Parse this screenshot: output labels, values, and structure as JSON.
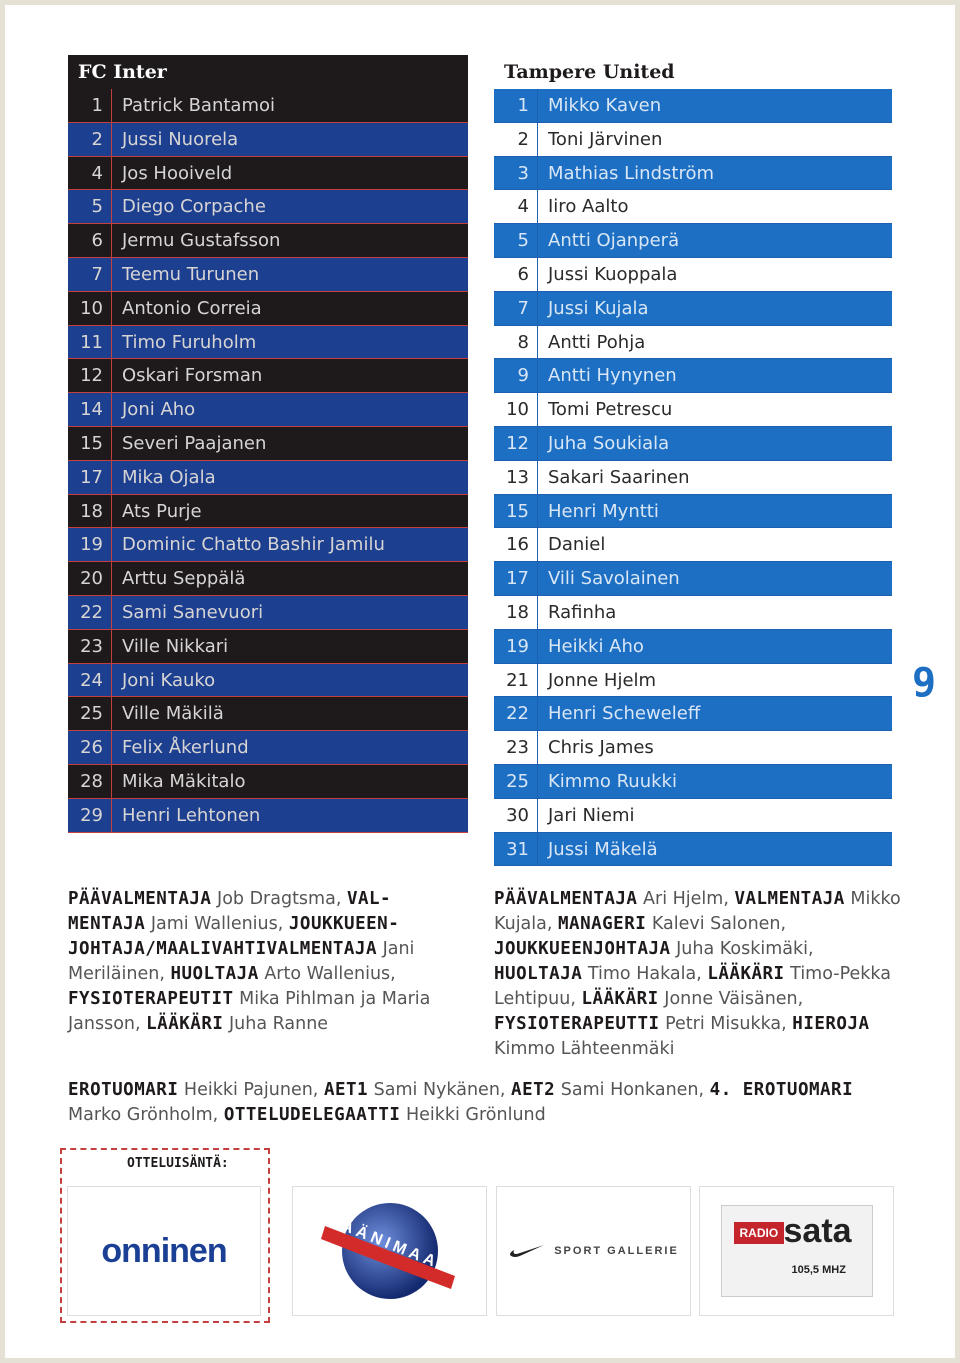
{
  "inter": {
    "title": "FC Inter",
    "players": [
      {
        "num": "1",
        "name": "Patrick Bantamoi",
        "style": "dark"
      },
      {
        "num": "2",
        "name": "Jussi Nuorela",
        "style": "blue"
      },
      {
        "num": "4",
        "name": "Jos Hooiveld",
        "style": "dark"
      },
      {
        "num": "5",
        "name": "Diego Corpache",
        "style": "blue"
      },
      {
        "num": "6",
        "name": "Jermu Gustafsson",
        "style": "dark"
      },
      {
        "num": "7",
        "name": "Teemu Turunen",
        "style": "blue"
      },
      {
        "num": "10",
        "name": "Antonio Correia",
        "style": "dark"
      },
      {
        "num": "11",
        "name": "Timo Furuholm",
        "style": "blue"
      },
      {
        "num": "12",
        "name": "Oskari Forsman",
        "style": "dark"
      },
      {
        "num": "14",
        "name": "Joni Aho",
        "style": "blue"
      },
      {
        "num": "15",
        "name": "Severi Paajanen",
        "style": "dark"
      },
      {
        "num": "17",
        "name": "Mika Ojala",
        "style": "blue"
      },
      {
        "num": "18",
        "name": "Ats Purje",
        "style": "dark"
      },
      {
        "num": "19",
        "name": "Dominic Chatto Bashir Jamilu",
        "style": "blue"
      },
      {
        "num": "20",
        "name": "Arttu Seppälä",
        "style": "dark"
      },
      {
        "num": "22",
        "name": "Sami Sanevuori",
        "style": "blue"
      },
      {
        "num": "23",
        "name": "Ville Nikkari",
        "style": "dark"
      },
      {
        "num": "24",
        "name": "Joni Kauko",
        "style": "blue"
      },
      {
        "num": "25",
        "name": "Ville Mäkilä",
        "style": "dark"
      },
      {
        "num": "26",
        "name": "Felix Åkerlund",
        "style": "blue"
      },
      {
        "num": "28",
        "name": "Mika Mäkitalo",
        "style": "dark"
      },
      {
        "num": "29",
        "name": "Henri Lehtonen",
        "style": "blue"
      }
    ],
    "staff": [
      {
        "role": "PÄÄVALMENTAJA",
        "name": " Job Dragtsma, "
      },
      {
        "role": "VAL-MENTAJA",
        "name": " Jami Wallenius, "
      },
      {
        "role": "JOUKKUEEN-JOHTAJA/MAALIVAHTIVALMENTAJA",
        "name": " Jani Meriläinen, "
      },
      {
        "role": "HUOLTAJA",
        "name": " Arto Wallenius, "
      },
      {
        "role": "FYSIOTERAPEUTIT",
        "name": " Mika Pihlman ja Maria Jansson, "
      },
      {
        "role": "LÄÄKÄRI",
        "name": " Juha Ranne"
      }
    ]
  },
  "tampere": {
    "title": "Tampere United",
    "players": [
      {
        "num": "1",
        "name": "Mikko Kaven",
        "style": "blue"
      },
      {
        "num": "2",
        "name": "Toni Järvinen",
        "style": "white"
      },
      {
        "num": "3",
        "name": "Mathias Lindström",
        "style": "blue"
      },
      {
        "num": "4",
        "name": "Iiro Aalto",
        "style": "white"
      },
      {
        "num": "5",
        "name": "Antti Ojanperä",
        "style": "blue"
      },
      {
        "num": "6",
        "name": "Jussi Kuoppala",
        "style": "white"
      },
      {
        "num": "7",
        "name": "Jussi Kujala",
        "style": "blue"
      },
      {
        "num": "8",
        "name": "Antti Pohja",
        "style": "white"
      },
      {
        "num": "9",
        "name": "Antti Hynynen",
        "style": "blue"
      },
      {
        "num": "10",
        "name": "Tomi Petrescu",
        "style": "white"
      },
      {
        "num": "12",
        "name": "Juha Soukiala",
        "style": "blue"
      },
      {
        "num": "13",
        "name": "Sakari Saarinen",
        "style": "white"
      },
      {
        "num": "15",
        "name": "Henri Myntti",
        "style": "blue"
      },
      {
        "num": "16",
        "name": "Daniel",
        "style": "white"
      },
      {
        "num": "17",
        "name": "Vili Savolainen",
        "style": "blue"
      },
      {
        "num": "18",
        "name": "Rafinha",
        "style": "white"
      },
      {
        "num": "19",
        "name": "Heikki Aho",
        "style": "blue"
      },
      {
        "num": "21",
        "name": "Jonne Hjelm",
        "style": "white"
      },
      {
        "num": "22",
        "name": "Henri Scheweleff",
        "style": "blue"
      },
      {
        "num": "23",
        "name": "Chris James",
        "style": "white"
      },
      {
        "num": "25",
        "name": "Kimmo Ruukki",
        "style": "blue"
      },
      {
        "num": "30",
        "name": "Jari Niemi",
        "style": "white"
      },
      {
        "num": "31",
        "name": "Jussi Mäkelä",
        "style": "blue"
      }
    ],
    "staff": [
      {
        "role": "PÄÄVALMENTAJA",
        "name": " Ari Hjelm, "
      },
      {
        "role": "VALMENTAJA",
        "name": " Mikko Kujala, "
      },
      {
        "role": "MANAGERI",
        "name": " Kalevi Salonen, "
      },
      {
        "role": "JOUKKUEENJOHTAJA",
        "name": " Juha Koskimäki, "
      },
      {
        "role": "HUOLTAJA",
        "name": " Timo Hakala, "
      },
      {
        "role": "LÄÄKÄRI",
        "name": " Timo-Pekka Lehtipuu, "
      },
      {
        "role": "LÄÄKÄRI",
        "name": " Jonne Väisänen, "
      },
      {
        "role": "FYSIOTERAPEUTTI",
        "name": " Petri Misukka, "
      },
      {
        "role": "HIEROJA",
        "name": " Kimmo Lähteenmäki"
      }
    ]
  },
  "officials": [
    {
      "role": "EROTUOMARI",
      "name": " Heikki Pajunen, "
    },
    {
      "role": "AET1",
      "name": " Sami Nykänen, "
    },
    {
      "role": "AET2",
      "name": " Sami Honkanen, "
    },
    {
      "role": "4. EROTUOMARI",
      "name": " Marko Grönholm, "
    },
    {
      "role": "OTTELUDELEGAATTI",
      "name": " Heikki Grönlund"
    }
  ],
  "page_number": "9",
  "sponsors": {
    "title": "OTTELUISÄNTÄ:",
    "onninen": "onninen",
    "aanimaa": "ÄÄNIMAA",
    "sport": "SPORT GALLERIE",
    "sata_radio": "RADIO",
    "sata": "sata",
    "sata_freq": "105,5 MHZ",
    "colors": {
      "onninen": "#1a3f95",
      "aanimaa_red": "#d32a2a",
      "aanimaa_blue": "#2346a0"
    }
  }
}
